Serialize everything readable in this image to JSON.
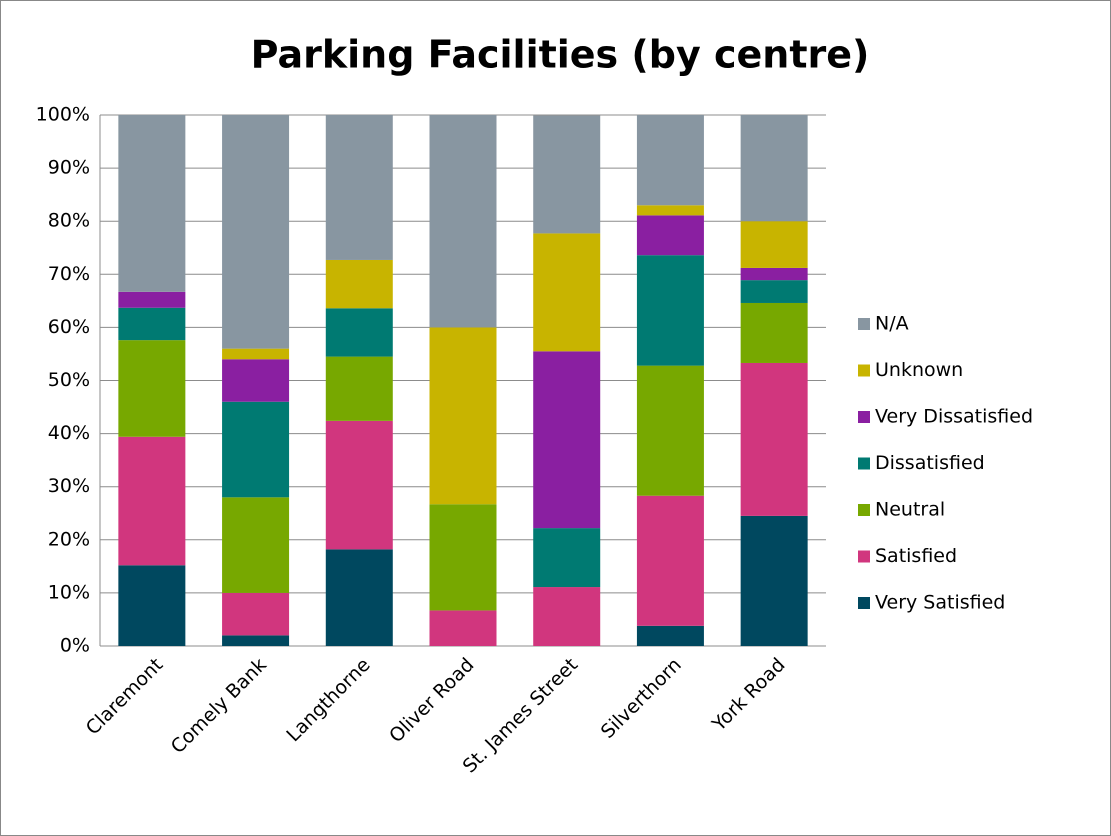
{
  "chart_data": {
    "type": "stacked_bar",
    "title": "Parking Facilities (by centre)",
    "categories": [
      "Claremont",
      "Comely Bank",
      "Langthorne",
      "Oliver Road",
      "St. James Street",
      "Silverthorn",
      "York Road"
    ],
    "series": [
      {
        "name": "Very Satisfied",
        "color": "#00485f",
        "values": [
          15.2,
          2,
          18.2,
          0,
          0,
          3.8,
          24.5
        ]
      },
      {
        "name": "Satisfied",
        "color": "#d1367e",
        "values": [
          24.2,
          8,
          24.2,
          6.7,
          11.1,
          24.5,
          28.8
        ]
      },
      {
        "name": "Neutral",
        "color": "#77a800",
        "values": [
          18.2,
          18,
          12.1,
          20,
          0,
          24.5,
          11.3
        ]
      },
      {
        "name": "Dissatisfied",
        "color": "#007a72",
        "values": [
          6.1,
          18,
          9.1,
          0,
          11.1,
          20.8,
          4.3
        ]
      },
      {
        "name": "Very Dissatisfied",
        "color": "#8a1fa1",
        "values": [
          3,
          8,
          0,
          0,
          33.3,
          7.5,
          2.3
        ]
      },
      {
        "name": "Unknown",
        "color": "#c8b400",
        "values": [
          0,
          2,
          9.1,
          33.3,
          22.2,
          1.9,
          8.8
        ]
      },
      {
        "name": "N/A",
        "color": "#8896a1",
        "values": [
          33.3,
          44,
          27.3,
          40,
          22.2,
          17,
          20
        ]
      }
    ],
    "ylim": [
      0,
      100
    ],
    "yticks": [
      {
        "value": 0,
        "label": "0%"
      },
      {
        "value": 10,
        "label": "10%"
      },
      {
        "value": 20,
        "label": "20%"
      },
      {
        "value": 30,
        "label": "30%"
      },
      {
        "value": 40,
        "label": "40%"
      },
      {
        "value": 50,
        "label": "50%"
      },
      {
        "value": 60,
        "label": "60%"
      },
      {
        "value": 70,
        "label": "70%"
      },
      {
        "value": 80,
        "label": "80%"
      },
      {
        "value": 90,
        "label": "90%"
      },
      {
        "value": 100,
        "label": "100%"
      }
    ],
    "grid": true,
    "legend": "right"
  }
}
